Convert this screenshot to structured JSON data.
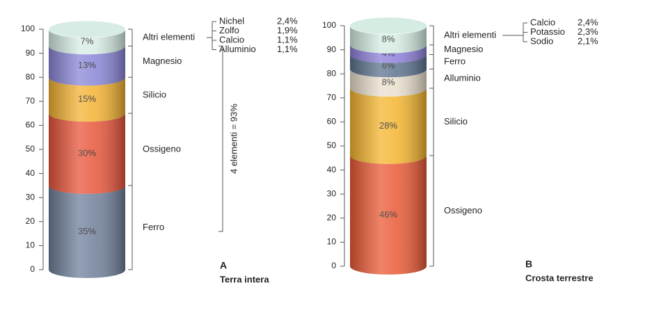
{
  "chart_data": [
    {
      "type": "bar",
      "letter": "A",
      "title": "Terra intera",
      "categories": [
        "Ferro",
        "Ossigeno",
        "Silicio",
        "Magnesio",
        "Altri elementi"
      ],
      "values": [
        35,
        30,
        15,
        13,
        7
      ],
      "value_labels": [
        "35%",
        "30%",
        "15%",
        "13%",
        "7%"
      ],
      "colors": [
        "#6f7f9a",
        "#e8553a",
        "#f3b233",
        "#8a86d8",
        "#d6ece4"
      ],
      "ylim": [
        0,
        100
      ],
      "yticks": [
        0,
        10,
        20,
        30,
        40,
        50,
        60,
        70,
        80,
        90,
        100
      ],
      "detail": {
        "names": [
          "Nichel",
          "Zolfo",
          "Calcio",
          "Alluminio"
        ],
        "values": [
          2.4,
          1.9,
          1.1,
          1.1
        ],
        "value_labels": [
          "2,4%",
          "1,9%",
          "1,1%",
          "1,1%"
        ]
      },
      "bracket_label": "4 elementi = 93%"
    },
    {
      "type": "bar",
      "letter": "B",
      "title": "Crosta terrestre",
      "categories": [
        "Ossigeno",
        "Silicio",
        "Alluminio",
        "Ferro",
        "Magnesio",
        "Altri elementi"
      ],
      "values": [
        46,
        28,
        8,
        6,
        4,
        8
      ],
      "value_labels": [
        "46%",
        "28%",
        "8%",
        "6%",
        "4%",
        "8%"
      ],
      "colors": [
        "#ea5a36",
        "#f4b52e",
        "#e9dfcd",
        "#5d7490",
        "#8e80db",
        "#d4ece2"
      ],
      "ylim": [
        0,
        100
      ],
      "yticks": [
        0,
        10,
        20,
        30,
        40,
        50,
        60,
        70,
        80,
        90,
        100
      ],
      "detail": {
        "names": [
          "Calcio",
          "Potassio",
          "Sodio"
        ],
        "values": [
          2.4,
          2.3,
          2.1
        ],
        "value_labels": [
          "2,4%",
          "2,3%",
          "2,1%"
        ]
      }
    }
  ]
}
